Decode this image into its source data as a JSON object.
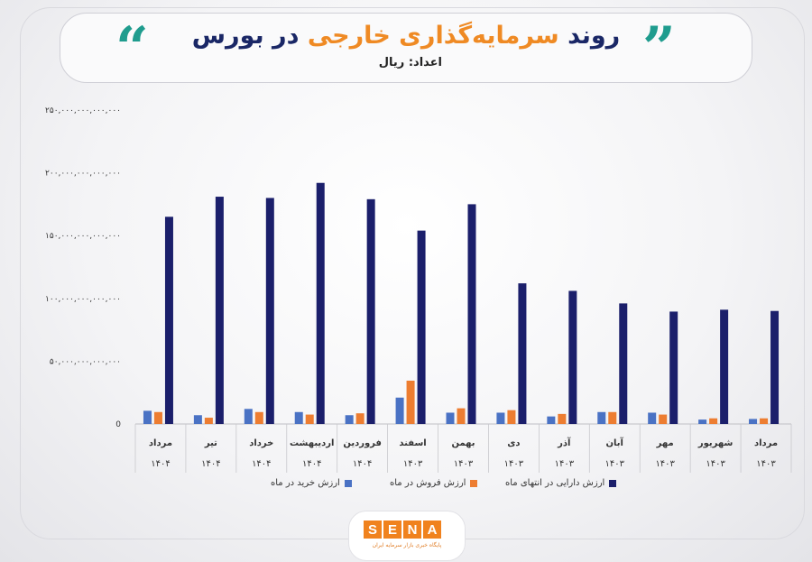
{
  "header": {
    "title_part1": "روند ",
    "title_accent": "سرمایه‌گذاری خارجی",
    "title_part2": " در بورس",
    "unit_label": "اعداد: ریال",
    "quote_open": "“",
    "quote_close": "”"
  },
  "colors": {
    "purchase": "#4a72c4",
    "sales": "#ed7d31",
    "assets": "#1b1f6b",
    "title": "#1a2766",
    "accent": "#ef8a24",
    "quote": "#1f9c8e"
  },
  "logo": {
    "letters": [
      "S",
      "E",
      "N",
      "A"
    ],
    "tagline": "پایگاه خبری بازار سرمایه ایران"
  },
  "chart_data": {
    "type": "bar",
    "categories": [
      {
        "month": "مرداد",
        "year": "۱۴۰۳"
      },
      {
        "month": "شهریور",
        "year": "۱۴۰۳"
      },
      {
        "month": "مهر",
        "year": "۱۴۰۳"
      },
      {
        "month": "آبان",
        "year": "۱۴۰۳"
      },
      {
        "month": "آذر",
        "year": "۱۴۰۳"
      },
      {
        "month": "دی",
        "year": "۱۴۰۳"
      },
      {
        "month": "بهمن",
        "year": "۱۴۰۳"
      },
      {
        "month": "اسفند",
        "year": "۱۴۰۳"
      },
      {
        "month": "فروردین",
        "year": "۱۴۰۴"
      },
      {
        "month": "اردیبهشت",
        "year": "۱۴۰۴"
      },
      {
        "month": "خرداد",
        "year": "۱۴۰۴"
      },
      {
        "month": "تیر",
        "year": "۱۴۰۴"
      },
      {
        "month": "مرداد",
        "year": "۱۴۰۴"
      }
    ],
    "series": [
      {
        "name": "ارزش خرید در ماه",
        "color": "#4a72c4",
        "values": [
          4000000000000,
          3500000000000,
          9000000000000,
          9500000000000,
          6000000000000,
          9000000000000,
          9000000000000,
          21000000000000,
          7000000000000,
          9500000000000,
          12000000000000,
          7000000000000,
          10500000000000
        ]
      },
      {
        "name": "ارزش فروش در ماه",
        "color": "#ed7d31",
        "values": [
          4500000000000,
          4500000000000,
          7500000000000,
          9500000000000,
          8000000000000,
          11000000000000,
          12500000000000,
          34500000000000,
          8500000000000,
          7500000000000,
          9500000000000,
          5000000000000,
          9500000000000
        ]
      },
      {
        "name": "ارزش دارایی در انتهای ماه",
        "color": "#1b1f6b",
        "values": [
          90000000000000,
          91000000000000,
          89500000000000,
          96000000000000,
          106000000000000,
          112000000000000,
          175000000000000,
          154000000000000,
          179000000000000,
          192000000000000,
          180000000000000,
          181000000000000,
          165000000000000
        ]
      }
    ],
    "y_ticks": [
      {
        "value": 0,
        "label": "0"
      },
      {
        "value": 50000000000000,
        "label": "۵۰,۰۰۰,۰۰۰,۰۰۰,۰۰۰"
      },
      {
        "value": 100000000000000,
        "label": "۱۰۰,۰۰۰,۰۰۰,۰۰۰,۰۰۰"
      },
      {
        "value": 150000000000000,
        "label": "۱۵۰,۰۰۰,۰۰۰,۰۰۰,۰۰۰"
      },
      {
        "value": 200000000000000,
        "label": "۲۰۰,۰۰۰,۰۰۰,۰۰۰,۰۰۰"
      },
      {
        "value": 250000000000000,
        "label": "۲۵۰,۰۰۰,۰۰۰,۰۰۰,۰۰۰"
      }
    ],
    "ylim": [
      0,
      250000000000000
    ],
    "x_order": "right-to-left",
    "grid": false,
    "legend_position": "bottom"
  }
}
